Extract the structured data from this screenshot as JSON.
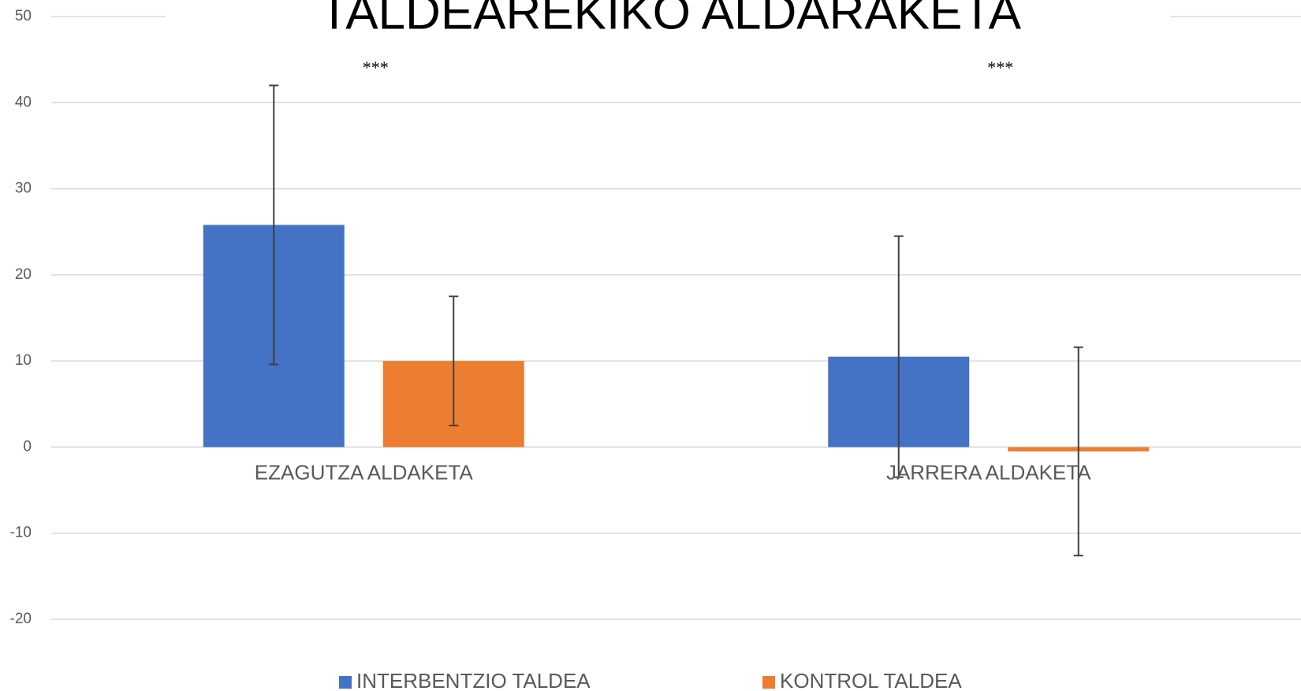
{
  "chart_data": {
    "type": "bar",
    "title": "TALDEAREKIKO ALDARAKETA",
    "categories": [
      "EZAGUTZA ALDAKETA",
      "JARRERA ALDAKETA"
    ],
    "series": [
      {
        "name": "INTERBENTZIO TALDEA",
        "color": "#4472c4",
        "values": [
          25.8,
          10.5
        ],
        "errors": [
          16.2,
          14
        ]
      },
      {
        "name": "KONTROL TALDEA",
        "color": "#ed7d31",
        "values": [
          10,
          -0.5
        ],
        "errors": [
          7.5,
          12.1
        ]
      }
    ],
    "annotations": [
      "***",
      "***"
    ],
    "ylim": [
      -20,
      50
    ],
    "yticks": [
      -20,
      -10,
      0,
      10,
      20,
      30,
      40,
      50
    ],
    "grid": true,
    "legend": "bottom"
  }
}
